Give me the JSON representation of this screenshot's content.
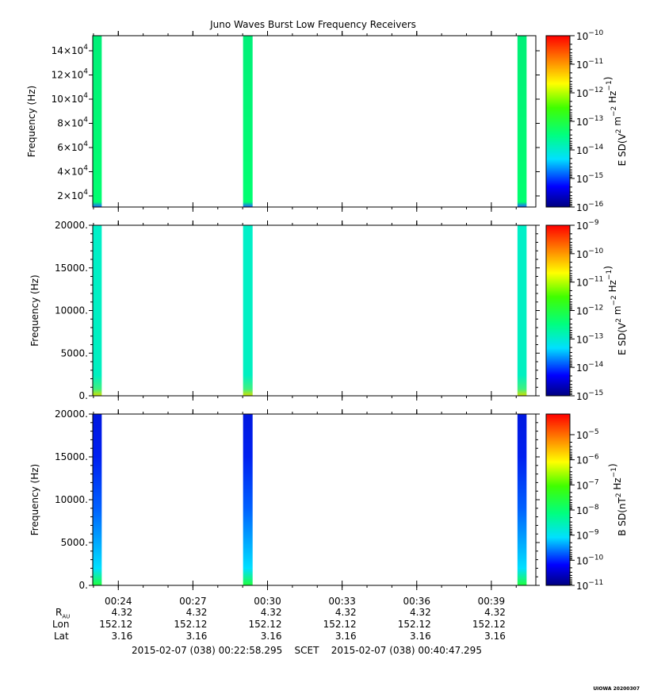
{
  "title": "Juno Waves Burst Low Frequency Receivers",
  "chart_data": [
    {
      "type": "heatmap",
      "panel": "top",
      "ylabel": "Frequency (Hz)",
      "y_ticks": [
        "2x10^4",
        "4x10^4",
        "6x10^4",
        "8x10^4",
        "10x10^4",
        "12x10^4",
        "14x10^4"
      ],
      "colorbar_label": "E SD (V^2 m^-2 Hz^-1)",
      "colorbar_ticks": [
        "10^-10",
        "10^-11",
        "10^-12",
        "10^-13",
        "10^-14",
        "10^-15",
        "10^-16"
      ],
      "colorbar_range_log10": [
        -16,
        -10
      ],
      "bursts": [
        {
          "t_start": "00:22:58",
          "t_end": "00:23:20",
          "level_log10": -13.8,
          "low_band": "blue"
        },
        {
          "t_start": "00:29:01",
          "t_end": "00:29:24",
          "level_log10": -13.8,
          "low_band": "blue"
        },
        {
          "t_start": "00:40:03",
          "t_end": "00:40:25",
          "level_log10": -13.8,
          "low_band": "blue"
        }
      ]
    },
    {
      "type": "heatmap",
      "panel": "middle",
      "ylabel": "Frequency (Hz)",
      "y_ticks": [
        "0.",
        "5000.",
        "10000.",
        "15000.",
        "20000."
      ],
      "ylim": [
        0,
        20000
      ],
      "colorbar_label": "E SD (V^2 m^-2 Hz^-1)",
      "colorbar_ticks": [
        "10^-9",
        "10^-10",
        "10^-11",
        "10^-12",
        "10^-13",
        "10^-14",
        "10^-15"
      ],
      "colorbar_range_log10": [
        -15,
        -9
      ],
      "bursts": [
        {
          "t_start": "00:22:58",
          "t_end": "00:23:20",
          "level_log10": -13.1,
          "low_band": "yellow-green"
        },
        {
          "t_start": "00:29:01",
          "t_end": "00:29:24",
          "level_log10": -13.1,
          "low_band": "yellow-green"
        },
        {
          "t_start": "00:40:03",
          "t_end": "00:40:25",
          "level_log10": -13.1,
          "low_band": "yellow-green"
        }
      ]
    },
    {
      "type": "heatmap",
      "panel": "bottom",
      "ylabel": "Frequency (Hz)",
      "y_ticks": [
        "0.",
        "5000.",
        "10000.",
        "15000.",
        "20000."
      ],
      "ylim": [
        0,
        20000
      ],
      "colorbar_label": "B SD (nT^2 Hz^-1)",
      "colorbar_ticks": [
        "10^-5",
        "10^-6",
        "10^-7",
        "10^-8",
        "10^-9",
        "10^-10",
        "10^-11"
      ],
      "colorbar_range_log10": [
        -11,
        -4.5
      ],
      "bursts": [
        {
          "t_start": "00:22:58",
          "t_end": "00:23:20",
          "level_log10": -10.3,
          "low_band": "cyan-green"
        },
        {
          "t_start": "00:29:01",
          "t_end": "00:29:24",
          "level_log10": -10.3,
          "low_band": "cyan-green"
        },
        {
          "t_start": "00:40:03",
          "t_end": "00:40:25",
          "level_log10": -10.3,
          "low_band": "cyan-green"
        }
      ]
    }
  ],
  "x_axis": {
    "start": "00:22:58.295",
    "end": "00:40:47.295",
    "tick_labels": [
      "00:24",
      "00:27",
      "00:30",
      "00:33",
      "00:36",
      "00:39"
    ]
  },
  "ephemeris": {
    "labels": {
      "r": "R",
      "r_sub": "AU",
      "lon": "Lon",
      "lat": "Lat"
    },
    "columns": [
      {
        "r": "4.32",
        "lon": "152.12",
        "lat": "3.16"
      },
      {
        "r": "4.32",
        "lon": "152.12",
        "lat": "3.16"
      },
      {
        "r": "4.32",
        "lon": "152.12",
        "lat": "3.16"
      },
      {
        "r": "4.32",
        "lon": "152.12",
        "lat": "3.16"
      },
      {
        "r": "4.32",
        "lon": "152.12",
        "lat": "3.16"
      },
      {
        "r": "4.32",
        "lon": "152.12",
        "lat": "3.16"
      }
    ]
  },
  "scet": {
    "start": "2015-02-07 (038) 00:22:58.295",
    "label": "SCET",
    "end": "2015-02-07 (038) 00:40:47.295"
  },
  "credit": "UIOWA 20200307"
}
